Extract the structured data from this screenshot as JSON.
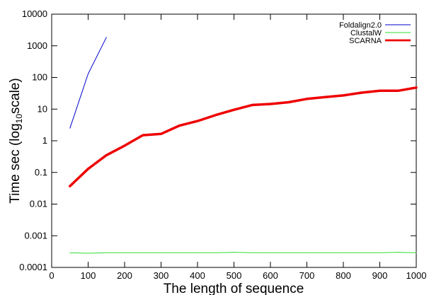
{
  "chart_data": {
    "type": "line",
    "title": "",
    "xlabel": "The length of sequence",
    "ylabel_main": "Time sec (log",
    "ylabel_sub": "10",
    "ylabel_end": "scale)",
    "xlim": [
      0,
      1000
    ],
    "ylim": [
      0.0001,
      10000
    ],
    "yscale": "log",
    "grid": false,
    "legend_position": "top-right",
    "xticks": [
      0,
      100,
      200,
      300,
      400,
      500,
      600,
      700,
      800,
      900,
      1000
    ],
    "xtick_labels": [
      "0",
      "100",
      "200",
      "300",
      "400",
      "500",
      "600",
      "700",
      "800",
      "900",
      "1000"
    ],
    "yticks": [
      0.0001,
      0.001,
      0.01,
      0.1,
      1,
      10,
      100,
      1000,
      10000
    ],
    "ytick_labels": [
      "0.0001",
      "0.001",
      "0.01",
      "0.1",
      "1",
      "10",
      "100",
      "1000",
      "10000"
    ],
    "series": [
      {
        "name": "Foldalign2.0",
        "color": "#0000cc",
        "width": 1,
        "x": [
          50,
          100,
          150
        ],
        "y": [
          2.5,
          130,
          1850
        ]
      },
      {
        "name": "ClustalW",
        "color": "#33dd33",
        "width": 1,
        "x": [
          50,
          100,
          150,
          200,
          250,
          300,
          350,
          400,
          450,
          500,
          550,
          600,
          650,
          700,
          750,
          800,
          850,
          900,
          950,
          1000
        ],
        "y": [
          0.00029,
          0.00028,
          0.00029,
          0.00029,
          0.00029,
          0.00029,
          0.00029,
          0.00029,
          0.00029,
          0.0003,
          0.00029,
          0.00029,
          0.00029,
          0.00029,
          0.00029,
          0.00029,
          0.00029,
          0.00029,
          0.0003,
          0.00029
        ]
      },
      {
        "name": "SCARNA",
        "color": "#ee0000",
        "width": 3.5,
        "x": [
          50,
          100,
          150,
          200,
          250,
          300,
          350,
          400,
          450,
          500,
          550,
          600,
          650,
          700,
          750,
          800,
          850,
          900,
          950,
          1000
        ],
        "y": [
          0.037,
          0.13,
          0.35,
          0.7,
          1.5,
          1.65,
          3.0,
          4.2,
          6.5,
          9.5,
          13.5,
          14.5,
          16.5,
          21,
          24,
          27,
          33,
          38,
          38,
          48
        ]
      }
    ]
  }
}
